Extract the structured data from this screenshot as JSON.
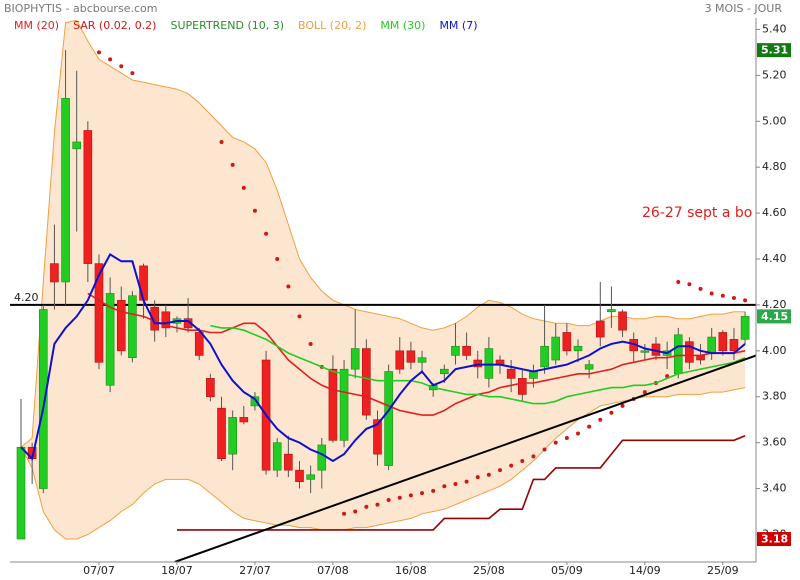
{
  "chart_data": {
    "type": "candlestick",
    "title": "BIOPHYTIS - abcbourse.com",
    "subtitle": "3 MOIS - JOUR",
    "categories": [
      null,
      null,
      null,
      null,
      null,
      null,
      null,
      "07/07",
      null,
      null,
      null,
      null,
      null,
      null,
      "18/07",
      null,
      null,
      null,
      null,
      null,
      null,
      "27/07",
      null,
      null,
      null,
      null,
      null,
      null,
      "07/08",
      null,
      null,
      null,
      null,
      null,
      null,
      "16/08",
      null,
      null,
      null,
      null,
      null,
      null,
      "25/08",
      null,
      null,
      null,
      null,
      null,
      null,
      "05/09",
      null,
      null,
      null,
      null,
      null,
      null,
      "14/09",
      null,
      null,
      null,
      null,
      null,
      null,
      "25/09",
      null,
      null
    ],
    "open": [
      3.18,
      3.58,
      3.4,
      4.38,
      4.3,
      4.88,
      4.96,
      4.38,
      3.85,
      4.22,
      3.97,
      4.37,
      4.19,
      4.17,
      4.12,
      4.14,
      4.08,
      3.88,
      3.75,
      3.55,
      3.71,
      3.76,
      3.96,
      3.48,
      3.55,
      3.48,
      3.44,
      3.48,
      3.92,
      3.61,
      3.92,
      4.01,
      3.7,
      3.5,
      4.0,
      4.0,
      3.95,
      3.83,
      3.9,
      3.98,
      4.02,
      3.96,
      3.88,
      3.96,
      3.92,
      3.88,
      3.88,
      3.93,
      3.96,
      4.08,
      4.0,
      3.92,
      4.13,
      4.17,
      4.17,
      4.05,
      4.0,
      4.03,
      3.98,
      3.9,
      4.04,
      3.98,
      3.99,
      4.08,
      4.05,
      4.05
    ],
    "high": [
      3.79,
      3.6,
      4.2,
      4.55,
      5.31,
      5.22,
      5.0,
      4.42,
      4.32,
      4.28,
      4.26,
      4.38,
      4.22,
      4.2,
      4.15,
      4.23,
      4.1,
      3.9,
      3.8,
      3.74,
      3.76,
      3.82,
      4.0,
      3.62,
      3.63,
      3.52,
      3.5,
      3.62,
      3.98,
      3.96,
      4.18,
      4.05,
      3.74,
      3.94,
      4.06,
      4.04,
      4.0,
      3.86,
      3.94,
      4.12,
      4.08,
      4.0,
      4.06,
      3.98,
      3.96,
      3.92,
      3.94,
      4.2,
      4.12,
      4.12,
      4.05,
      3.96,
      4.3,
      4.28,
      4.18,
      4.08,
      4.03,
      4.06,
      4.04,
      4.1,
      4.06,
      4.03,
      4.1,
      4.09,
      4.1,
      4.17
    ],
    "low": [
      3.18,
      3.42,
      3.38,
      4.18,
      4.2,
      4.52,
      4.3,
      3.92,
      3.82,
      3.98,
      3.95,
      4.14,
      4.04,
      4.06,
      4.08,
      4.08,
      3.96,
      3.78,
      3.52,
      3.48,
      3.68,
      3.74,
      3.46,
      3.45,
      3.45,
      3.4,
      3.38,
      3.4,
      3.6,
      3.58,
      3.88,
      3.7,
      3.5,
      3.48,
      3.9,
      3.92,
      3.9,
      3.8,
      3.86,
      3.94,
      3.96,
      3.88,
      3.84,
      3.9,
      3.82,
      3.78,
      3.84,
      3.9,
      3.94,
      3.98,
      3.95,
      3.88,
      4.02,
      4.1,
      4.06,
      3.95,
      3.96,
      3.96,
      3.92,
      3.88,
      3.92,
      3.94,
      3.96,
      3.98,
      3.96,
      4.03
    ],
    "close": [
      3.58,
      3.53,
      4.18,
      4.3,
      5.1,
      4.91,
      4.38,
      3.95,
      4.25,
      4.0,
      4.24,
      4.22,
      4.09,
      4.1,
      4.14,
      4.1,
      3.98,
      3.8,
      3.53,
      3.71,
      3.69,
      3.8,
      3.48,
      3.6,
      3.48,
      3.43,
      3.46,
      3.59,
      3.61,
      3.92,
      4.01,
      3.72,
      3.55,
      3.91,
      3.92,
      3.95,
      3.97,
      3.85,
      3.92,
      4.02,
      3.98,
      3.93,
      4.01,
      3.94,
      3.88,
      3.81,
      3.91,
      4.02,
      4.06,
      4.0,
      4.02,
      3.94,
      4.06,
      4.18,
      4.09,
      4.0,
      4.0,
      3.98,
      4.0,
      4.07,
      3.95,
      3.96,
      4.06,
      4.0,
      4.0,
      4.15
    ],
    "up_color": "#22cc22",
    "down_color": "#ee2020",
    "series": [
      {
        "name": "MM (20)",
        "color": "#e02020",
        "style": "line",
        "values": [
          null,
          null,
          null,
          null,
          null,
          null,
          4.25,
          4.22,
          4.19,
          4.17,
          4.16,
          4.15,
          4.13,
          4.11,
          4.1,
          4.09,
          4.09,
          4.08,
          4.08,
          4.1,
          4.12,
          4.12,
          4.08,
          4.02,
          3.96,
          3.92,
          3.88,
          3.85,
          3.83,
          3.82,
          3.81,
          3.8,
          3.78,
          3.76,
          3.74,
          3.73,
          3.72,
          3.72,
          3.74,
          3.77,
          3.79,
          3.81,
          3.82,
          3.84,
          3.85,
          3.86,
          3.86,
          3.87,
          3.88,
          3.89,
          3.9,
          3.9,
          3.91,
          3.92,
          3.94,
          3.95,
          3.96,
          3.97,
          3.97,
          3.98,
          3.98,
          3.98,
          3.99,
          3.99,
          3.99,
          4.0
        ]
      },
      {
        "name": "SAR (0.02, 0.2)",
        "color": "#d01818",
        "style": "dots",
        "values": [
          null,
          null,
          null,
          null,
          null,
          null,
          null,
          5.3,
          5.27,
          5.24,
          5.21,
          null,
          null,
          null,
          null,
          null,
          null,
          null,
          4.91,
          4.81,
          4.71,
          4.61,
          4.51,
          4.4,
          4.28,
          4.15,
          4.03,
          3.93,
          null,
          3.29,
          3.3,
          3.32,
          3.33,
          3.35,
          3.36,
          3.37,
          3.38,
          3.39,
          3.41,
          3.42,
          3.43,
          3.45,
          3.46,
          3.48,
          3.5,
          3.52,
          3.54,
          3.57,
          3.6,
          3.62,
          3.64,
          3.67,
          3.7,
          3.73,
          3.76,
          3.79,
          3.82,
          3.86,
          3.89,
          4.3,
          4.29,
          4.27,
          4.25,
          4.24,
          4.23,
          4.22
        ]
      },
      {
        "name": "SUPERTREND (10, 3)",
        "color": "#2e8b2e",
        "line_color": "#990000",
        "style": "line",
        "values": [
          null,
          null,
          null,
          null,
          null,
          null,
          null,
          null,
          null,
          null,
          null,
          null,
          null,
          null,
          3.22,
          3.22,
          3.22,
          3.22,
          3.22,
          3.22,
          3.22,
          3.22,
          3.22,
          3.22,
          3.22,
          3.22,
          3.22,
          3.22,
          3.22,
          3.22,
          3.22,
          3.22,
          3.22,
          3.22,
          3.22,
          3.22,
          3.22,
          3.22,
          3.27,
          3.27,
          3.27,
          3.27,
          3.27,
          3.31,
          3.31,
          3.31,
          3.44,
          3.44,
          3.49,
          3.49,
          3.49,
          3.49,
          3.49,
          3.55,
          3.61,
          3.61,
          3.61,
          3.61,
          3.61,
          3.61,
          3.61,
          3.61,
          3.61,
          3.61,
          3.61,
          3.63
        ]
      },
      {
        "name": "BOLL (20, 2)",
        "color": "#f0a040",
        "fill": "#fde6cf",
        "style": "band",
        "upper": [
          3.58,
          3.62,
          4.3,
          4.95,
          5.43,
          5.44,
          5.35,
          5.27,
          5.24,
          5.21,
          5.18,
          5.17,
          5.16,
          5.15,
          5.14,
          5.12,
          5.08,
          5.03,
          4.98,
          4.93,
          4.91,
          4.88,
          4.82,
          4.7,
          4.55,
          4.4,
          4.32,
          4.26,
          4.22,
          4.2,
          4.18,
          4.17,
          4.16,
          4.15,
          4.14,
          4.12,
          4.1,
          4.09,
          4.1,
          4.12,
          4.15,
          4.19,
          4.22,
          4.21,
          4.19,
          4.16,
          4.14,
          4.13,
          4.12,
          4.12,
          4.11,
          4.11,
          4.13,
          4.15,
          4.15,
          4.14,
          4.14,
          4.15,
          4.15,
          4.14,
          4.14,
          4.15,
          4.16,
          4.16,
          4.17,
          4.17
        ],
        "lower": [
          3.58,
          3.49,
          3.3,
          3.22,
          3.18,
          3.18,
          3.2,
          3.23,
          3.26,
          3.3,
          3.33,
          3.38,
          3.42,
          3.44,
          3.44,
          3.44,
          3.42,
          3.38,
          3.34,
          3.3,
          3.27,
          3.26,
          3.25,
          3.24,
          3.24,
          3.23,
          3.23,
          3.22,
          3.22,
          3.22,
          3.23,
          3.23,
          3.24,
          3.25,
          3.26,
          3.27,
          3.29,
          3.3,
          3.31,
          3.33,
          3.35,
          3.37,
          3.39,
          3.41,
          3.44,
          3.48,
          3.52,
          3.57,
          3.62,
          3.66,
          3.7,
          3.73,
          3.76,
          3.77,
          3.78,
          3.79,
          3.8,
          3.8,
          3.8,
          3.81,
          3.81,
          3.81,
          3.82,
          3.82,
          3.83,
          3.84
        ]
      },
      {
        "name": "MM (30)",
        "color": "#22cc22",
        "style": "line",
        "values": [
          null,
          null,
          null,
          null,
          null,
          null,
          null,
          null,
          null,
          null,
          null,
          null,
          null,
          null,
          null,
          null,
          null,
          4.11,
          4.1,
          4.1,
          4.09,
          4.07,
          4.05,
          4.02,
          3.99,
          3.97,
          3.95,
          3.93,
          3.91,
          3.9,
          3.89,
          3.88,
          3.87,
          3.87,
          3.87,
          3.87,
          3.86,
          3.84,
          3.83,
          3.82,
          3.81,
          3.81,
          3.8,
          3.8,
          3.79,
          3.78,
          3.77,
          3.77,
          3.78,
          3.8,
          3.81,
          3.82,
          3.83,
          3.84,
          3.84,
          3.85,
          3.85,
          3.86,
          3.88,
          3.9,
          3.91,
          3.92,
          3.93,
          3.94,
          3.95,
          3.97
        ]
      },
      {
        "name": "MM (7)",
        "color": "#1010d0",
        "style": "line",
        "values": [
          3.58,
          3.53,
          3.75,
          4.03,
          4.1,
          4.15,
          4.22,
          4.33,
          4.42,
          4.39,
          4.39,
          4.22,
          4.12,
          4.12,
          4.13,
          4.13,
          4.09,
          4.03,
          3.94,
          3.87,
          3.82,
          3.79,
          3.72,
          3.66,
          3.62,
          3.6,
          3.57,
          3.55,
          3.52,
          3.55,
          3.61,
          3.66,
          3.68,
          3.74,
          3.81,
          3.87,
          3.91,
          3.85,
          3.87,
          3.92,
          3.93,
          3.94,
          3.94,
          3.94,
          3.93,
          3.92,
          3.91,
          3.92,
          3.93,
          3.94,
          3.96,
          3.98,
          4.01,
          4.03,
          4.04,
          4.03,
          4.01,
          4.0,
          3.99,
          4.02,
          4.02,
          4.0,
          3.99,
          3.99,
          3.99,
          4.03
        ]
      }
    ],
    "hline": {
      "value": 4.2,
      "label": "4.20"
    },
    "trendline": {
      "x": [
        13.8,
        66
      ],
      "y": [
        3.08,
        3.98
      ]
    },
    "annotation": "26-27 sept a bo",
    "annotation_color": "#e02020",
    "price_flags": [
      {
        "value": 5.31,
        "color": "#137a13"
      },
      {
        "value": 4.15,
        "color": "#2aa84a"
      },
      {
        "value": 3.18,
        "color": "#cc0000"
      }
    ],
    "ylim": [
      3.08,
      5.45
    ],
    "yticks": [
      {
        "value": 3.2,
        "label": "3.20"
      },
      {
        "value": 3.4,
        "label": "3.40"
      },
      {
        "value": 3.6,
        "label": "3.60"
      },
      {
        "value": 3.8,
        "label": "3.80"
      },
      {
        "value": 4.0,
        "label": "4.00"
      },
      {
        "value": 4.2,
        "label": "4.20"
      },
      {
        "value": 4.4,
        "label": "4.40"
      },
      {
        "value": 4.6,
        "label": "4.60"
      },
      {
        "value": 4.8,
        "label": "4.80"
      },
      {
        "value": 5.0,
        "label": "5.00"
      },
      {
        "value": 5.2,
        "label": "5.20"
      },
      {
        "value": 5.4,
        "label": "5.40"
      }
    ],
    "grid": false
  }
}
